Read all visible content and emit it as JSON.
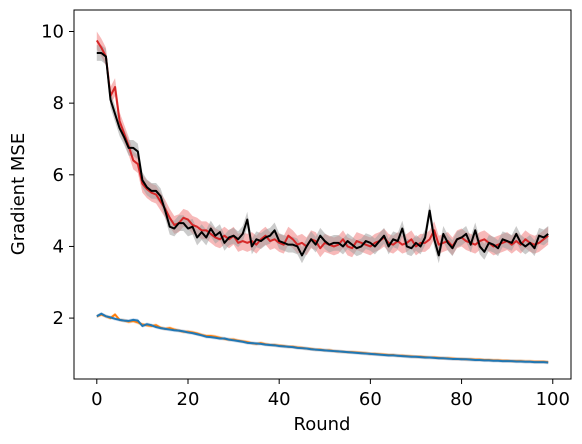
{
  "chart_data": {
    "type": "line",
    "xlabel": "Round",
    "ylabel": "Gradient MSE",
    "xlim": [
      -5,
      104
    ],
    "ylim": [
      0.3,
      10.6
    ],
    "x_ticks": [
      0,
      20,
      40,
      60,
      80,
      100
    ],
    "y_ticks": [
      2,
      4,
      6,
      8,
      10
    ],
    "grid": false,
    "legend": "none",
    "x": [
      0,
      1,
      2,
      3,
      4,
      5,
      6,
      7,
      8,
      9,
      10,
      11,
      12,
      13,
      14,
      15,
      16,
      17,
      18,
      19,
      20,
      21,
      22,
      23,
      24,
      25,
      26,
      27,
      28,
      29,
      30,
      31,
      32,
      33,
      34,
      35,
      36,
      37,
      38,
      39,
      40,
      41,
      42,
      43,
      44,
      45,
      46,
      47,
      48,
      49,
      50,
      51,
      52,
      53,
      54,
      55,
      56,
      57,
      58,
      59,
      60,
      61,
      62,
      63,
      64,
      65,
      66,
      67,
      68,
      69,
      70,
      71,
      72,
      73,
      74,
      75,
      76,
      77,
      78,
      79,
      80,
      81,
      82,
      83,
      84,
      85,
      86,
      87,
      88,
      89,
      90,
      91,
      92,
      93,
      94,
      95,
      96,
      97,
      98,
      99
    ],
    "series": [
      {
        "color": "#d62728",
        "band_color": "#f08080",
        "band": 0.25,
        "values": [
          9.75,
          9.55,
          9.3,
          8.2,
          8.45,
          7.5,
          7.15,
          6.8,
          6.4,
          6.3,
          5.75,
          5.6,
          5.5,
          5.45,
          5.25,
          5.05,
          4.8,
          4.6,
          4.65,
          4.8,
          4.75,
          4.6,
          4.55,
          4.45,
          4.45,
          4.35,
          4.25,
          4.2,
          4.3,
          4.2,
          4.3,
          4.1,
          4.15,
          4.1,
          4.15,
          4.05,
          4.2,
          4.3,
          4.15,
          4.2,
          4.1,
          4.05,
          4.3,
          4.2,
          4.05,
          4.1,
          4.0,
          4.2,
          4.15,
          3.95,
          4.1,
          4.05,
          4.0,
          4.05,
          4.2,
          4.0,
          3.95,
          4.15,
          4.1,
          4.05,
          4.0,
          4.1,
          4.15,
          4.25,
          4.1,
          4.05,
          4.15,
          4.05,
          4.1,
          4.2,
          4.0,
          4.1,
          4.1,
          4.2,
          4.45,
          4.05,
          4.1,
          4.15,
          4.0,
          4.2,
          4.25,
          4.15,
          4.1,
          4.05,
          4.15,
          4.2,
          4.1,
          4.0,
          4.05,
          4.1,
          4.15,
          4.05,
          4.15,
          4.05,
          4.2,
          4.1,
          4.05,
          4.1,
          4.2,
          4.3
        ],
        "width": 2
      },
      {
        "color": "#000000",
        "band_color": "#a0a0a0",
        "band": 0.22,
        "values": [
          9.4,
          9.4,
          9.3,
          8.1,
          7.7,
          7.3,
          7.05,
          6.75,
          6.75,
          6.65,
          5.85,
          5.65,
          5.55,
          5.55,
          5.4,
          5.0,
          4.55,
          4.5,
          4.65,
          4.65,
          4.5,
          4.55,
          4.25,
          4.4,
          4.25,
          4.5,
          4.3,
          4.4,
          4.1,
          4.25,
          4.3,
          4.2,
          4.35,
          4.75,
          4.0,
          4.2,
          4.15,
          4.25,
          4.3,
          4.45,
          4.15,
          4.1,
          4.05,
          4.05,
          4.0,
          3.75,
          4.0,
          4.2,
          4.05,
          4.3,
          4.15,
          4.05,
          4.1,
          4.1,
          4.0,
          4.15,
          4.05,
          3.95,
          4.0,
          4.15,
          4.1,
          4.0,
          4.15,
          4.3,
          4.0,
          4.2,
          4.15,
          4.5,
          4.0,
          3.95,
          4.1,
          4.0,
          4.25,
          5.0,
          4.2,
          3.75,
          4.35,
          4.1,
          3.95,
          4.2,
          4.25,
          4.35,
          4.05,
          4.45,
          4.0,
          3.85,
          4.1,
          4.05,
          3.95,
          4.2,
          4.15,
          4.1,
          4.35,
          4.1,
          4.0,
          4.1,
          3.95,
          4.3,
          4.25,
          4.35
        ],
        "width": 2
      },
      {
        "color": "#ff7f0e",
        "band_color": "#ffbb78",
        "band": 0.05,
        "values": [
          2.05,
          2.1,
          2.05,
          2.0,
          2.1,
          1.95,
          1.93,
          1.9,
          1.92,
          1.88,
          1.82,
          1.8,
          1.78,
          1.8,
          1.73,
          1.7,
          1.72,
          1.68,
          1.65,
          1.62,
          1.62,
          1.6,
          1.57,
          1.53,
          1.5,
          1.5,
          1.48,
          1.45,
          1.42,
          1.4,
          1.4,
          1.37,
          1.35,
          1.33,
          1.3,
          1.28,
          1.3,
          1.27,
          1.25,
          1.25,
          1.23,
          1.22,
          1.2,
          1.2,
          1.18,
          1.17,
          1.15,
          1.14,
          1.12,
          1.12,
          1.1,
          1.1,
          1.08,
          1.07,
          1.06,
          1.05,
          1.05,
          1.04,
          1.03,
          1.02,
          1.0,
          1.0,
          0.99,
          0.98,
          0.97,
          0.97,
          0.95,
          0.95,
          0.94,
          0.93,
          0.92,
          0.92,
          0.91,
          0.9,
          0.9,
          0.89,
          0.88,
          0.88,
          0.87,
          0.86,
          0.86,
          0.85,
          0.85,
          0.84,
          0.84,
          0.83,
          0.83,
          0.82,
          0.82,
          0.81,
          0.81,
          0.8,
          0.8,
          0.8,
          0.79,
          0.79,
          0.78,
          0.78,
          0.78,
          0.77
        ],
        "width": 2
      },
      {
        "color": "#1f77b4",
        "band_color": "#aec7e8",
        "band": 0.05,
        "values": [
          2.05,
          2.12,
          2.05,
          2.02,
          1.98,
          1.95,
          1.93,
          1.92,
          1.95,
          1.93,
          1.78,
          1.83,
          1.8,
          1.75,
          1.72,
          1.7,
          1.68,
          1.66,
          1.65,
          1.63,
          1.6,
          1.58,
          1.55,
          1.52,
          1.48,
          1.47,
          1.45,
          1.43,
          1.43,
          1.4,
          1.38,
          1.36,
          1.34,
          1.31,
          1.3,
          1.29,
          1.28,
          1.26,
          1.25,
          1.24,
          1.22,
          1.21,
          1.2,
          1.19,
          1.17,
          1.16,
          1.15,
          1.13,
          1.12,
          1.11,
          1.1,
          1.09,
          1.08,
          1.07,
          1.06,
          1.05,
          1.04,
          1.03,
          1.02,
          1.01,
          1.0,
          0.99,
          0.98,
          0.97,
          0.96,
          0.96,
          0.95,
          0.94,
          0.93,
          0.92,
          0.92,
          0.91,
          0.9,
          0.9,
          0.89,
          0.88,
          0.88,
          0.87,
          0.86,
          0.86,
          0.85,
          0.85,
          0.84,
          0.83,
          0.83,
          0.82,
          0.82,
          0.81,
          0.81,
          0.8,
          0.8,
          0.8,
          0.79,
          0.79,
          0.78,
          0.78,
          0.77,
          0.77,
          0.77,
          0.76
        ],
        "width": 2
      }
    ]
  }
}
